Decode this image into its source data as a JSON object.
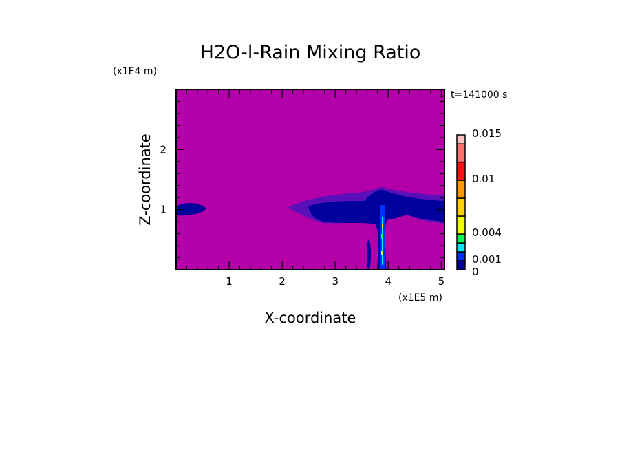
{
  "chart_data": {
    "type": "heatmap",
    "title": "H2O-l-Rain Mixing Ratio",
    "time_label": "t=141000 s",
    "xlabel": "X-coordinate",
    "ylabel": "Z-coordinate",
    "x_scale_label": "(x1E5 m)",
    "y_scale_label": "(x1E4 m)",
    "xlim": [
      0,
      5.06
    ],
    "ylim": [
      0,
      3.0
    ],
    "x_ticks": [
      "1",
      "2",
      "3",
      "4",
      "5"
    ],
    "x_tick_values": [
      1,
      2,
      3,
      4,
      5
    ],
    "y_ticks": [
      "1",
      "2"
    ],
    "y_tick_values": [
      1,
      2
    ],
    "colorbar": {
      "levels": [
        0,
        0.001,
        0.002,
        0.003,
        0.004,
        0.006,
        0.008,
        0.01,
        0.012,
        0.014,
        0.015
      ],
      "colors": [
        "#00009c",
        "#0030ff",
        "#00e8ff",
        "#00ff50",
        "#f0ff00",
        "#ffd000",
        "#ff9800",
        "#ff1010",
        "#ff7070",
        "#ffc0c0"
      ],
      "labels": [
        "0",
        "0.001",
        "0.004",
        "0.01",
        "0.015"
      ],
      "label_values": [
        0,
        0.001,
        0.004,
        0.01,
        0.015
      ]
    },
    "background_color": "#b400a8",
    "features": [
      {
        "name": "anvil cloud",
        "x_range": [
          2.2,
          5.06
        ],
        "z_range": [
          0.85,
          1.5
        ]
      },
      {
        "name": "left cloud band",
        "x_range": [
          0,
          0.6
        ],
        "z_range": [
          0.9,
          1.1
        ]
      },
      {
        "name": "convective core",
        "x_center": 3.92,
        "z_range": [
          0,
          1.1
        ],
        "max_value": 0.004
      },
      {
        "name": "small shaft",
        "x_center": 3.65,
        "z_range": [
          0,
          0.45
        ]
      }
    ]
  }
}
